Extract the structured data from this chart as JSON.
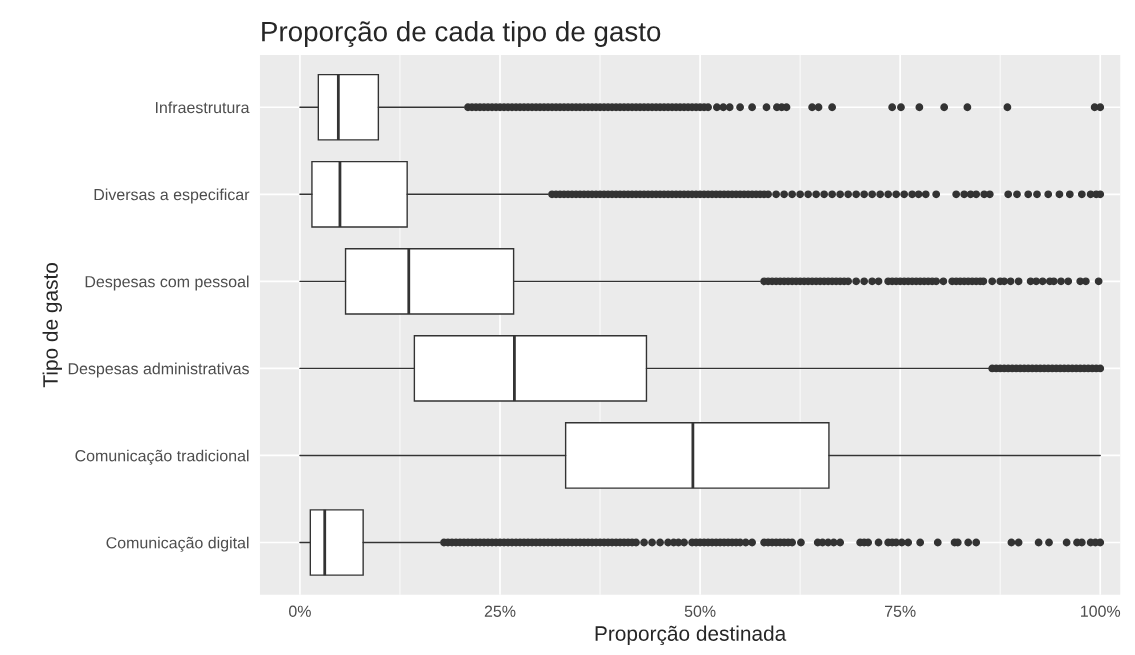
{
  "chart_data": {
    "type": "box",
    "orientation": "horizontal",
    "title": "Proporção de cada tipo de gasto",
    "xlabel": "Proporção destinada",
    "ylabel": "Tipo de gasto",
    "categories": [
      "Infraestrutura",
      "Diversas a especificar",
      "Despesas com pessoal",
      "Despesas administrativas",
      "Comunicação tradicional",
      "Comunicação digital"
    ],
    "boxes": [
      {
        "low": 0,
        "q1": 2.3,
        "median": 4.8,
        "q3": 9.8,
        "high": 20.5,
        "outliers": [
          21,
          21.5,
          22,
          22.5,
          23,
          23.5,
          24,
          24.5,
          25,
          25.5,
          26,
          26.5,
          27,
          27.5,
          28,
          28.5,
          29,
          29.5,
          30,
          30.5,
          31,
          31.5,
          32,
          32.5,
          33,
          33.5,
          34,
          34.5,
          35,
          35.5,
          36,
          36.5,
          37,
          37.5,
          38,
          38.5,
          39,
          39.5,
          40,
          40.5,
          41,
          41.5,
          42,
          42.5,
          43,
          43.5,
          44,
          44.5,
          45,
          45.5,
          46,
          46.5,
          47,
          47.5,
          48,
          48.5,
          49,
          49.5,
          50,
          50.5,
          51,
          52.1,
          52.9,
          53.7,
          55,
          56.5,
          58.3,
          59.6,
          60.2,
          60.8,
          64,
          64.8,
          66.5,
          74,
          75.1,
          77.4,
          80.5,
          83.4,
          88.4,
          99.3,
          100
        ]
      },
      {
        "low": 0,
        "q1": 1.5,
        "median": 5,
        "q3": 13.4,
        "high": 31,
        "outliers": [
          31.5,
          32,
          32.5,
          33,
          33.5,
          34,
          34.5,
          35,
          35.5,
          36,
          36.5,
          37,
          37.5,
          38,
          38.5,
          39,
          39.5,
          40,
          40.5,
          41,
          41.5,
          42,
          42.5,
          43,
          43.5,
          44,
          44.5,
          45,
          45.5,
          46,
          46.5,
          47,
          47.5,
          48,
          48.5,
          49,
          49.5,
          50,
          50.5,
          51,
          51.5,
          52,
          52.5,
          53,
          53.5,
          54,
          54.5,
          55,
          55.5,
          56,
          56.5,
          57,
          57.5,
          58,
          58.5,
          59.5,
          60.5,
          61.5,
          62.5,
          63.5,
          64.5,
          65.5,
          66.5,
          67.5,
          68.5,
          69.5,
          70.5,
          71.5,
          72.5,
          73.5,
          74.5,
          75.5,
          76.5,
          77.3,
          78.2,
          79.5,
          82,
          83,
          83.8,
          84.5,
          85.5,
          86.2,
          88.5,
          89.6,
          91,
          92.1,
          93.5,
          94.9,
          96.2,
          97.7,
          98.8,
          99.5,
          100
        ]
      },
      {
        "low": 0,
        "q1": 5.7,
        "median": 13.6,
        "q3": 26.7,
        "high": 57.5,
        "outliers": [
          58,
          58.5,
          59,
          59.5,
          60,
          60.5,
          61,
          61.5,
          62,
          62.5,
          63,
          63.5,
          64,
          64.5,
          65,
          65.5,
          66,
          66.5,
          67,
          67.5,
          68,
          68.5,
          69.5,
          70.5,
          71.5,
          72.3,
          73.5,
          74,
          74.5,
          75,
          75.5,
          76,
          76.5,
          77,
          77.5,
          78,
          78.5,
          79,
          79.5,
          80.4,
          81.5,
          82,
          82.5,
          83,
          83.5,
          84,
          84.5,
          85,
          85.4,
          86.5,
          87.5,
          88,
          88.8,
          89.8,
          91.3,
          92,
          92.8,
          93.7,
          94.2,
          95.1,
          96,
          97.5,
          98.2,
          99.8
        ]
      },
      {
        "low": 0,
        "q1": 14.3,
        "median": 26.8,
        "q3": 43.3,
        "high": 86.3,
        "outliers": [
          86.5,
          87,
          87.5,
          88,
          88.5,
          89,
          89.5,
          90,
          90.5,
          91,
          91.5,
          92,
          92.5,
          93,
          93.5,
          94,
          94.5,
          95,
          95.5,
          96,
          96.5,
          97,
          97.5,
          98,
          98.5,
          99,
          99.5,
          100
        ]
      },
      {
        "low": 0,
        "q1": 33.2,
        "median": 49.1,
        "q3": 66.1,
        "high": 100
      },
      {
        "low": 0,
        "q1": 1.3,
        "median": 3.1,
        "q3": 7.9,
        "high": 17.5,
        "outliers": [
          18,
          18.5,
          19,
          19.5,
          20,
          20.5,
          21,
          21.5,
          22,
          22.5,
          23,
          23.5,
          24,
          24.5,
          25,
          25.5,
          26,
          26.5,
          27,
          27.5,
          28,
          28.5,
          29,
          29.5,
          30,
          30.5,
          31,
          31.5,
          32,
          32.5,
          33,
          33.5,
          34,
          34.5,
          35,
          35.5,
          36,
          36.5,
          37,
          37.5,
          38,
          38.5,
          39,
          39.5,
          40,
          40.5,
          41,
          41.5,
          42,
          43,
          44,
          45,
          46,
          46.7,
          47.3,
          48,
          49,
          49.5,
          50,
          50.5,
          51,
          51.5,
          52,
          52.5,
          53,
          53.5,
          54,
          54.5,
          55,
          55.7,
          56.5,
          58,
          58.5,
          59,
          59.5,
          60,
          60.5,
          61,
          61.5,
          62.6,
          64.7,
          65.3,
          66,
          66.7,
          67.5,
          70,
          70.5,
          71,
          72.3,
          73.5,
          74,
          74.5,
          75.2,
          76,
          77.5,
          79.7,
          81.8,
          82.2,
          83.5,
          84.5,
          88.9,
          89.8,
          92.3,
          93.6,
          95.8,
          97.1,
          97.7,
          98.8,
          99.4,
          100
        ]
      }
    ],
    "xlim": [
      -5,
      102.5
    ],
    "xticks": [
      {
        "value": 0,
        "label": "0%"
      },
      {
        "value": 25,
        "label": "25%"
      },
      {
        "value": 50,
        "label": "50%"
      },
      {
        "value": 75,
        "label": "75%"
      },
      {
        "value": 100,
        "label": "100%"
      }
    ],
    "grid": true
  }
}
